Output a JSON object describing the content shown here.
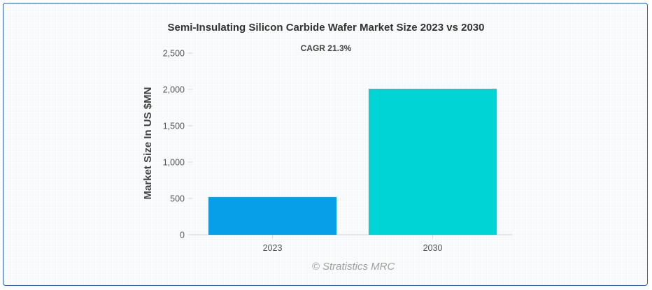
{
  "chart_data": {
    "type": "bar",
    "title": "Semi-Insulating Silicon Carbide Wafer Market Size 2023 vs 2030",
    "annotation": "CAGR 21.3%",
    "xlabel": "",
    "ylabel": "Market Size In US $MN",
    "categories": [
      "2023",
      "2030"
    ],
    "values": [
      520,
      2010
    ],
    "colors": [
      "#069fe8",
      "#00d4d4"
    ],
    "ylim": [
      0,
      2500
    ],
    "yticks": [
      0,
      500,
      1000,
      1500,
      2000,
      2500
    ],
    "ytick_labels": [
      "0",
      "500",
      "1,000",
      "1,500",
      "2,000",
      "2,500"
    ],
    "grid": false,
    "legend": "none"
  },
  "credit": "© Stratistics MRC"
}
